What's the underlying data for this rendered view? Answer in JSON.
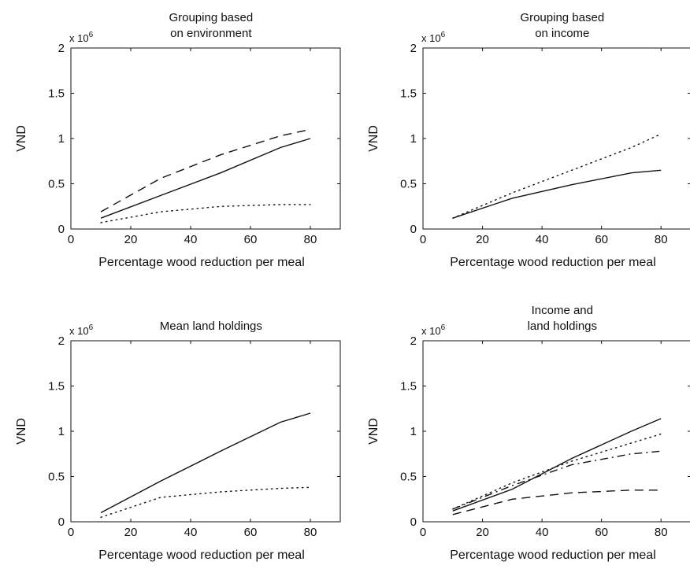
{
  "chart_data": [
    {
      "type": "line",
      "title": [
        "Grouping based",
        "on environment"
      ],
      "xlabel": "Percentage wood reduction per meal",
      "ylabel": "VND",
      "y_multiplier": {
        "base": "x 10",
        "exponent": "6"
      },
      "xlim": [
        0,
        90
      ],
      "ylim": [
        0,
        2
      ],
      "xticks": [
        0,
        20,
        40,
        60,
        80
      ],
      "yticks": [
        0,
        0.5,
        1,
        1.5,
        2
      ],
      "ytick_labels": [
        "0",
        "0.5",
        "1",
        "1.5",
        "2"
      ],
      "x": [
        10,
        30,
        50,
        70,
        80
      ],
      "series": [
        {
          "style": "solid",
          "values": [
            0.12,
            0.37,
            0.62,
            0.9,
            1.0
          ]
        },
        {
          "style": "dashed",
          "values": [
            0.19,
            0.56,
            0.82,
            1.03,
            1.1
          ]
        },
        {
          "style": "dotted",
          "values": [
            0.07,
            0.19,
            0.25,
            0.27,
            0.27
          ]
        }
      ]
    },
    {
      "type": "line",
      "title": [
        "Grouping based",
        "on income"
      ],
      "xlabel": "Percentage wood reduction per meal",
      "ylabel": "VND",
      "y_multiplier": {
        "base": "x 10",
        "exponent": "6"
      },
      "xlim": [
        0,
        90
      ],
      "ylim": [
        0,
        2
      ],
      "xticks": [
        0,
        20,
        40,
        60,
        80
      ],
      "yticks": [
        0,
        0.5,
        1,
        1.5,
        2
      ],
      "ytick_labels": [
        "0",
        "0.5",
        "1",
        "1.5",
        "2"
      ],
      "x": [
        10,
        30,
        50,
        70,
        80
      ],
      "series": [
        {
          "style": "solid",
          "values": [
            0.12,
            0.34,
            0.49,
            0.62,
            0.65
          ]
        },
        {
          "style": "dotted",
          "values": [
            0.12,
            0.4,
            0.65,
            0.9,
            1.05
          ]
        }
      ]
    },
    {
      "type": "line",
      "title": [
        "Mean land holdings"
      ],
      "xlabel": "Percentage wood reduction per meal",
      "ylabel": "VND",
      "y_multiplier": {
        "base": "x 10",
        "exponent": "6"
      },
      "xlim": [
        0,
        90
      ],
      "ylim": [
        -0.25,
        1.75
      ],
      "xticks": [
        0,
        20,
        40,
        60,
        80
      ],
      "yticks": [
        0,
        0.5,
        1,
        1.5,
        2
      ],
      "ytick_labels": [
        "0",
        "0.5",
        "1",
        "1.5",
        "2"
      ],
      "ytick_positions": [
        -0.25,
        0.25,
        0.75,
        1.25,
        1.75
      ],
      "x": [
        10,
        30,
        50,
        70,
        80
      ],
      "series": [
        {
          "style": "solid",
          "values": [
            -0.15,
            0.2,
            0.53,
            0.85,
            0.95
          ]
        },
        {
          "style": "dotted",
          "values": [
            -0.2,
            0.02,
            0.08,
            0.12,
            0.13
          ]
        }
      ]
    },
    {
      "type": "line",
      "title": [
        "Income and",
        "land holdings"
      ],
      "xlabel": "Percentage wood reduction per meal",
      "ylabel": "VND",
      "y_multiplier": {
        "base": "x 10",
        "exponent": "6"
      },
      "xlim": [
        0,
        90
      ],
      "ylim": [
        0,
        2
      ],
      "xticks": [
        0,
        20,
        40,
        60,
        80
      ],
      "yticks": [
        0,
        0.5,
        1,
        1.5,
        2
      ],
      "ytick_labels": [
        "0",
        "0.5",
        "1",
        "1.5",
        "2"
      ],
      "x": [
        10,
        30,
        50,
        70,
        80
      ],
      "series": [
        {
          "style": "solid",
          "values": [
            0.12,
            0.36,
            0.7,
            1.0,
            1.14
          ]
        },
        {
          "style": "dotted",
          "values": [
            0.14,
            0.43,
            0.67,
            0.87,
            0.97
          ]
        },
        {
          "style": "dashdot",
          "values": [
            0.14,
            0.4,
            0.63,
            0.75,
            0.78
          ]
        },
        {
          "style": "dashed",
          "values": [
            0.08,
            0.25,
            0.32,
            0.35,
            0.35
          ]
        }
      ]
    }
  ]
}
